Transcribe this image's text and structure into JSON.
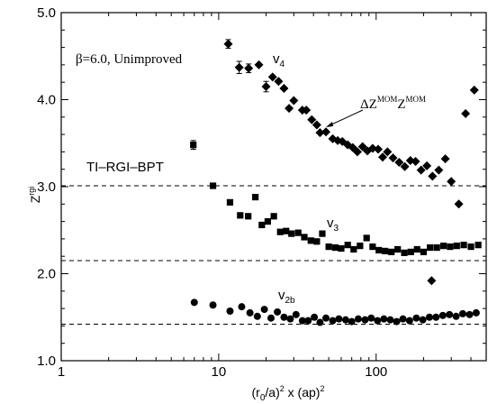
{
  "chart_data": {
    "type": "scatter",
    "xscale": "log",
    "xlim": [
      1,
      500
    ],
    "ylim": [
      1.0,
      5.0
    ],
    "yticks": [
      1.0,
      2.0,
      3.0,
      4.0,
      5.0
    ],
    "ytick_labels": [
      "1.0",
      "2.0",
      "3.0",
      "4.0",
      "5.0"
    ],
    "xticks": [
      1,
      10,
      100
    ],
    "xtick_labels": [
      "1",
      "10",
      "100"
    ],
    "xlabel": {
      "base": "(r",
      "sub": "0",
      "mid": "/a)",
      "sup": "2",
      "tail": " x (ap)",
      "sup2": "2"
    },
    "ylabel": {
      "base": "Z",
      "sup": "rgi"
    },
    "annotations": {
      "beta_label": "β=6.0, Unimproved",
      "bpt_label": "TI–RGI–BPT",
      "v4": {
        "base": "v",
        "sub": "4"
      },
      "v3": {
        "base": "v",
        "sub": "3"
      },
      "v2b": {
        "base": "v",
        "sub": "2b"
      },
      "delta": {
        "base": "ΔZ",
        "sup1": "MOM",
        "mid": "Z",
        "sup2": "MOM"
      }
    },
    "reference_lines": [
      3.01,
      2.15,
      1.42
    ],
    "grid": false,
    "legend": "none",
    "series": [
      {
        "name": "v4",
        "marker": "diamond",
        "x": [
          11.5,
          13.5,
          15.5,
          18,
          20,
          22,
          24,
          26,
          28,
          30,
          34,
          36,
          39,
          42,
          44,
          48,
          53,
          57,
          61,
          66,
          71,
          76,
          82,
          88,
          95,
          103,
          110,
          118,
          128,
          140,
          152,
          165,
          178,
          193,
          210,
          228,
          250,
          275,
          300,
          335,
          370,
          420
        ],
        "y": [
          4.64,
          4.37,
          4.36,
          4.4,
          4.15,
          4.26,
          4.21,
          4.13,
          3.9,
          3.99,
          3.88,
          3.88,
          3.77,
          3.71,
          3.62,
          3.63,
          3.55,
          3.53,
          3.52,
          3.48,
          3.45,
          3.4,
          3.46,
          3.41,
          3.44,
          3.43,
          3.34,
          3.4,
          3.33,
          3.28,
          3.23,
          3.3,
          3.29,
          3.19,
          3.24,
          3.12,
          3.19,
          3.32,
          3.06,
          2.8,
          3.84,
          4.11
        ],
        "yerr": [
          0.05,
          0.07,
          0.05,
          0,
          0.06,
          0,
          0,
          0,
          0,
          0,
          0,
          0,
          0,
          0,
          0,
          0,
          0,
          0,
          0,
          0,
          0,
          0,
          0,
          0,
          0,
          0,
          0,
          0,
          0,
          0,
          0,
          0,
          0,
          0,
          0,
          0,
          0,
          0,
          0,
          0,
          0,
          0
        ]
      },
      {
        "name": "v3",
        "marker": "square",
        "x": [
          6.9,
          9.2,
          11.8,
          13.7,
          15.4,
          17.1,
          18.8,
          20.5,
          22.4,
          24.6,
          26.8,
          29,
          32,
          35,
          38.5,
          42,
          45.5,
          50,
          55,
          60,
          66,
          72,
          79,
          87,
          95,
          104,
          114,
          125,
          137,
          151,
          166,
          182,
          200,
          220,
          243,
          268,
          295,
          325,
          360,
          400,
          445
        ],
        "y": [
          3.48,
          3.01,
          2.82,
          2.67,
          2.66,
          2.88,
          2.56,
          2.6,
          2.66,
          2.48,
          2.49,
          2.46,
          2.47,
          2.42,
          2.38,
          2.37,
          2.46,
          2.31,
          2.3,
          2.29,
          2.33,
          2.28,
          2.32,
          2.41,
          2.31,
          2.27,
          2.26,
          2.25,
          2.28,
          2.24,
          2.25,
          2.28,
          2.25,
          2.3,
          2.3,
          2.32,
          2.31,
          2.32,
          2.33,
          2.31,
          2.33
        ],
        "yerr": [
          0.05,
          0,
          0,
          0,
          0,
          0,
          0,
          0,
          0,
          0,
          0,
          0,
          0,
          0,
          0,
          0,
          0,
          0,
          0,
          0,
          0,
          0,
          0,
          0,
          0,
          0,
          0,
          0,
          0,
          0,
          0,
          0,
          0,
          0,
          0,
          0,
          0,
          0,
          0,
          0,
          0
        ]
      },
      {
        "name": "v3 outlier",
        "marker": "diamond",
        "x": [
          225
        ],
        "y": [
          1.92
        ],
        "yerr": [
          0
        ]
      },
      {
        "name": "v2b",
        "marker": "circle",
        "x": [
          7,
          9.2,
          11.8,
          14,
          15.8,
          17.6,
          19.5,
          21.5,
          23.6,
          26,
          28.5,
          31,
          34,
          37,
          40.5,
          44,
          48,
          53,
          58,
          64,
          70,
          77,
          85,
          93,
          102,
          112,
          123,
          135,
          148,
          163,
          180,
          198,
          218,
          240,
          265,
          292,
          322,
          355,
          392,
          432
        ],
        "y": [
          1.67,
          1.64,
          1.57,
          1.62,
          1.55,
          1.51,
          1.59,
          1.49,
          1.56,
          1.5,
          1.48,
          1.53,
          1.46,
          1.46,
          1.5,
          1.44,
          1.49,
          1.46,
          1.48,
          1.47,
          1.45,
          1.48,
          1.47,
          1.49,
          1.46,
          1.48,
          1.47,
          1.45,
          1.48,
          1.46,
          1.49,
          1.47,
          1.5,
          1.5,
          1.52,
          1.53,
          1.51,
          1.54,
          1.53,
          1.55
        ],
        "yerr": [
          0,
          0,
          0,
          0,
          0,
          0,
          0,
          0,
          0,
          0,
          0,
          0,
          0,
          0,
          0,
          0,
          0,
          0,
          0,
          0,
          0,
          0,
          0,
          0,
          0,
          0,
          0,
          0,
          0,
          0,
          0,
          0,
          0,
          0,
          0,
          0,
          0,
          0,
          0,
          0
        ]
      }
    ]
  }
}
